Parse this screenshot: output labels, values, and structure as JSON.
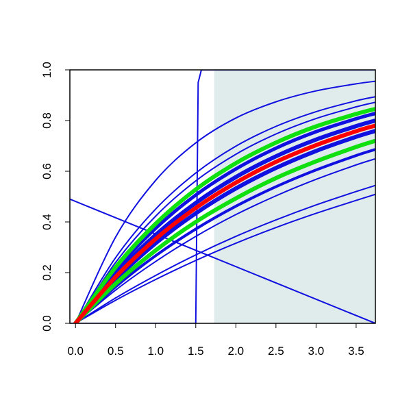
{
  "chart_data": {
    "type": "line",
    "xlim": [
      -0.07,
      3.74
    ],
    "ylim": [
      0,
      1
    ],
    "xticks": [
      {
        "value": 0,
        "label": "0.0"
      },
      0.5,
      {
        "value": 1,
        "label": "1.0"
      },
      1.5,
      {
        "value": 2,
        "label": "2.0"
      },
      2.5,
      {
        "value": 3,
        "label": "3.0"
      },
      3.5
    ],
    "yticks": [
      {
        "value": 0,
        "label": "0.0"
      },
      0.2,
      0.4,
      0.6,
      0.8,
      {
        "value": 1,
        "label": "1.0"
      }
    ],
    "shade": {
      "x": [
        1.73,
        3.74
      ],
      "color": "#e0ebeb"
    },
    "x": [
      0,
      0.5,
      1,
      1.5,
      2,
      2.5,
      3,
      3.5,
      3.74
    ],
    "series": [
      {
        "color": "#1010e0",
        "line_width": 2,
        "x": [
          -0.07,
          1.5,
          1.53,
          1.57,
          3.74
        ],
        "values": [
          0,
          0,
          0.95,
          1,
          1
        ]
      },
      {
        "color": "#1010e0",
        "line_width": 2,
        "x": [
          -0.07,
          3.74
        ],
        "values": [
          0.49,
          0
        ]
      },
      {
        "color": "#1010e0",
        "line_width": 2,
        "values": [
          0,
          0.34,
          0.564,
          0.712,
          0.81,
          0.874,
          0.917,
          0.945,
          0.955
        ]
      },
      {
        "color": "#1010e0",
        "line_width": 2,
        "values": [
          0,
          0.259,
          0.451,
          0.593,
          0.699,
          0.777,
          0.835,
          0.878,
          0.894
        ]
      },
      {
        "color": "#1010e0",
        "line_width": 2,
        "values": [
          0,
          0.24,
          0.423,
          0.562,
          0.667,
          0.747,
          0.808,
          0.854,
          0.872
        ]
      },
      {
        "color": "#1010e0",
        "line_width": 5,
        "values": [
          0,
          0.209,
          0.375,
          0.506,
          0.609,
          0.691,
          0.756,
          0.807,
          0.828
        ]
      },
      {
        "color": "#1010e0",
        "line_width": 6,
        "values": [
          0,
          0.193,
          0.349,
          0.475,
          0.577,
          0.659,
          0.725,
          0.778,
          0.8
        ]
      },
      {
        "color": "#1010e0",
        "line_width": 6,
        "values": [
          0,
          0.173,
          0.316,
          0.434,
          0.532,
          0.613,
          0.68,
          0.736,
          0.759
        ]
      },
      {
        "color": "#1010e0",
        "line_width": 4,
        "values": [
          0,
          0.144,
          0.267,
          0.372,
          0.462,
          0.539,
          0.605,
          0.662,
          0.686
        ]
      },
      {
        "color": "#1010e0",
        "line_width": 2,
        "values": [
          0,
          0.131,
          0.244,
          0.343,
          0.429,
          0.503,
          0.568,
          0.625,
          0.649
        ]
      },
      {
        "color": "#1010e0",
        "line_width": 2,
        "values": [
          0,
          0.1,
          0.189,
          0.27,
          0.343,
          0.408,
          0.467,
          0.52,
          0.544
        ]
      },
      {
        "color": "#1010e0",
        "line_width": 2,
        "values": [
          0,
          0.091,
          0.173,
          0.248,
          0.316,
          0.378,
          0.434,
          0.485,
          0.509
        ]
      },
      {
        "color": "#10e010",
        "line_width": 6,
        "values": [
          0,
          0.221,
          0.393,
          0.528,
          0.632,
          0.713,
          0.777,
          0.826,
          0.846
        ]
      },
      {
        "color": "#10e010",
        "line_width": 6,
        "values": [
          0,
          0.156,
          0.288,
          0.4,
          0.493,
          0.573,
          0.639,
          0.696,
          0.72
        ]
      },
      {
        "color": "#ff0000",
        "line_width": 6,
        "values": [
          0,
          0.183,
          0.333,
          0.455,
          0.555,
          0.637,
          0.703,
          0.758,
          0.78
        ]
      }
    ]
  }
}
